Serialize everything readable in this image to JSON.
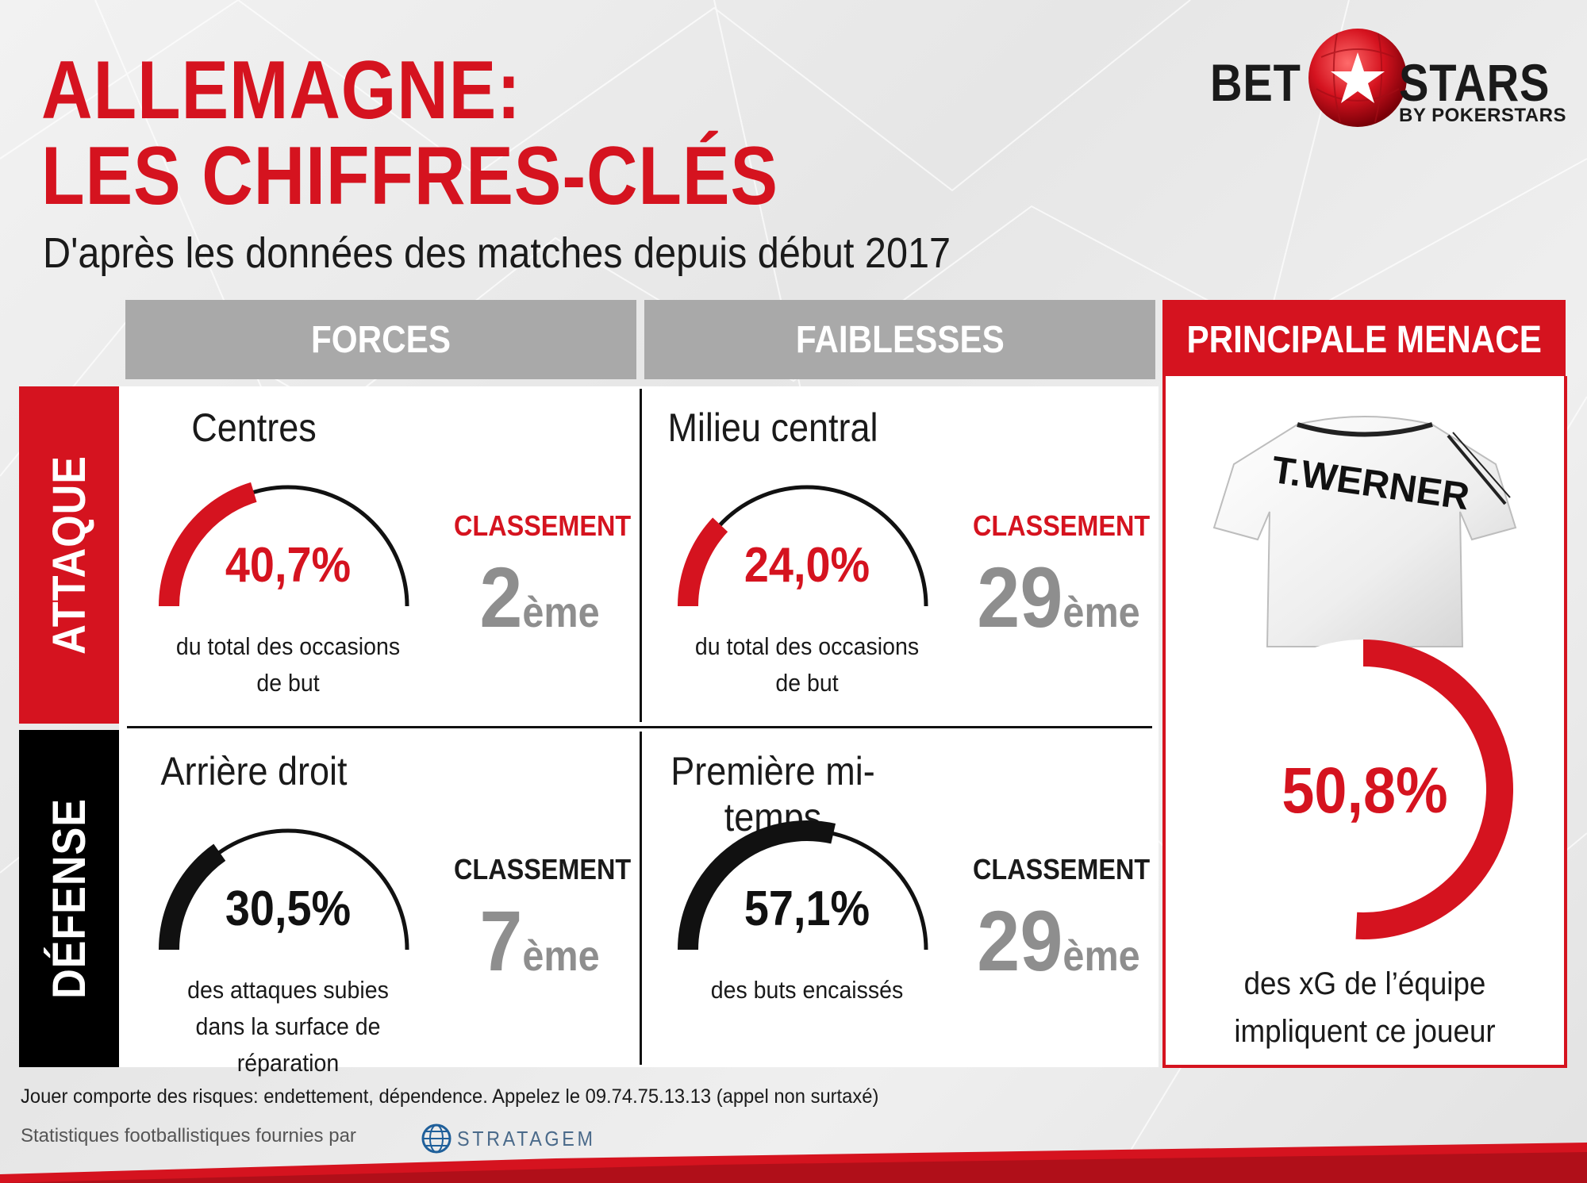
{
  "header": {
    "title_line1": "ALLEMAGNE:",
    "title_line2": "LES CHIFFRES-CLÉS",
    "subtitle": "D'après les données des matches depuis début 2017"
  },
  "logo": {
    "word_left": "BET",
    "word_right": "STARS",
    "tagline": "BY POKERSTARS",
    "icon": "soccer-ball-star-icon"
  },
  "columns": {
    "forces": "FORCES",
    "faiblesses": "FAIBLESSES",
    "menace": "PRINCIPALE MENACE"
  },
  "rows": {
    "attaque": "ATTAQUE",
    "defense": "DÉFENSE"
  },
  "cells": [
    {
      "title": "Centres",
      "value": "40,7%",
      "fraction": 0.407,
      "desc": "du total des occasions de but",
      "rank_label": "CLASSEMENT",
      "rank": "2",
      "rank_suffix": "ème"
    },
    {
      "title": "Milieu central",
      "value": "24,0%",
      "fraction": 0.24,
      "desc": "du total des occasions de but",
      "rank_label": "CLASSEMENT",
      "rank": "29",
      "rank_suffix": "ème"
    },
    {
      "title": "Arrière droit",
      "value": "30,5%",
      "fraction": 0.305,
      "desc": "des attaques subies dans la surface de réparation",
      "rank_label": "CLASSEMENT",
      "rank": "7",
      "rank_suffix": "ème"
    },
    {
      "title": "Première mi-temps",
      "value": "57,1%",
      "fraction": 0.571,
      "desc": "des buts encaissés",
      "rank_label": "CLASSEMENT",
      "rank": "29",
      "rank_suffix": "ème"
    }
  ],
  "menace": {
    "player_name": "T.WERNER",
    "value": "50,8%",
    "fraction": 0.508,
    "desc": "des xG de l’équipe impliquent ce joueur"
  },
  "footer": {
    "disclaimer": "Jouer comporte des risques: endettement, dépendence. Appelez le 09.74.75.13.13 (appel non surtaxé)",
    "provider_text": "Statistiques footballistiques fournies par",
    "provider_name": "STRATAGEM",
    "provider_icon": "globe-icon"
  },
  "colors": {
    "red": "#d5131f",
    "black": "#111111",
    "grey_header": "#a9a9a9",
    "rank_grey": "#8e8e8e"
  }
}
